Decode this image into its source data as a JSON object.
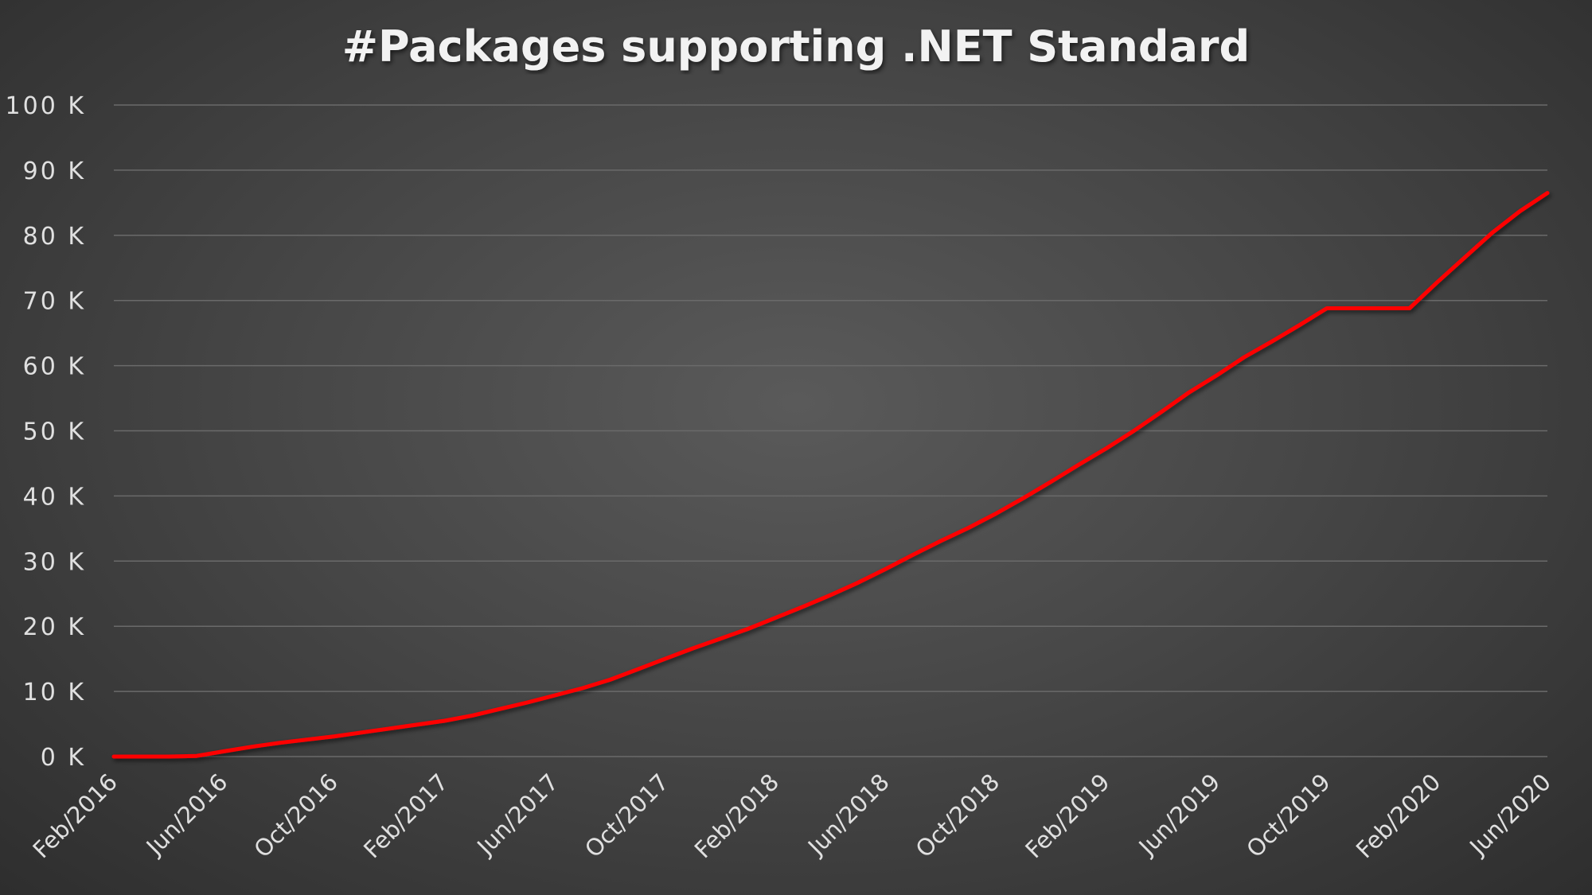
{
  "chart_data": {
    "type": "line",
    "title": "#Packages supporting .NET Standard",
    "xlabel": "",
    "ylabel": "",
    "ylim": [
      0,
      100000
    ],
    "y_ticks": [
      0,
      10000,
      20000,
      30000,
      40000,
      50000,
      60000,
      70000,
      80000,
      90000,
      100000
    ],
    "y_tick_labels": [
      "0 K",
      "10 K",
      "20 K",
      "30 K",
      "40 K",
      "50 K",
      "60 K",
      "70 K",
      "80 K",
      "90 K",
      "100 K"
    ],
    "x_tick_labels": [
      "Feb/2016",
      "Jun/2016",
      "Oct/2016",
      "Feb/2017",
      "Jun/2017",
      "Oct/2017",
      "Feb/2018",
      "Jun/2018",
      "Oct/2018",
      "Feb/2019",
      "Jun/2019",
      "Oct/2019",
      "Feb/2020",
      "Jun/2020"
    ],
    "grid": true,
    "legend": "none",
    "series": [
      {
        "color": "#ff0000",
        "x": [
          "2016-02",
          "2016-03",
          "2016-04",
          "2016-05",
          "2016-06",
          "2016-07",
          "2016-08",
          "2016-09",
          "2016-10",
          "2016-11",
          "2016-12",
          "2017-01",
          "2017-02",
          "2017-03",
          "2017-04",
          "2017-05",
          "2017-06",
          "2017-07",
          "2017-08",
          "2017-09",
          "2017-10",
          "2017-11",
          "2017-12",
          "2018-01",
          "2018-02",
          "2018-03",
          "2018-04",
          "2018-05",
          "2018-06",
          "2018-07",
          "2018-08",
          "2018-09",
          "2018-10",
          "2018-11",
          "2018-12",
          "2019-01",
          "2019-02",
          "2019-03",
          "2019-04",
          "2019-05",
          "2019-06",
          "2019-07",
          "2019-08",
          "2019-09",
          "2019-10",
          "2019-11",
          "2019-12",
          "2020-01",
          "2020-02",
          "2020-03",
          "2020-04",
          "2020-05",
          "2020-06"
        ],
        "values": [
          0,
          0,
          0,
          100,
          800,
          1500,
          2100,
          2600,
          3100,
          3700,
          4300,
          4900,
          5500,
          6300,
          7300,
          8300,
          9400,
          10500,
          11800,
          13400,
          15000,
          16600,
          18100,
          19600,
          21300,
          23000,
          24800,
          26700,
          28800,
          31000,
          33100,
          35100,
          37300,
          39700,
          42200,
          44800,
          47300,
          50000,
          52900,
          55900,
          58500,
          61300,
          63700,
          66200,
          68800,
          68800,
          68800,
          68800,
          72800,
          76600,
          80400,
          83700,
          86500
        ]
      }
    ]
  }
}
